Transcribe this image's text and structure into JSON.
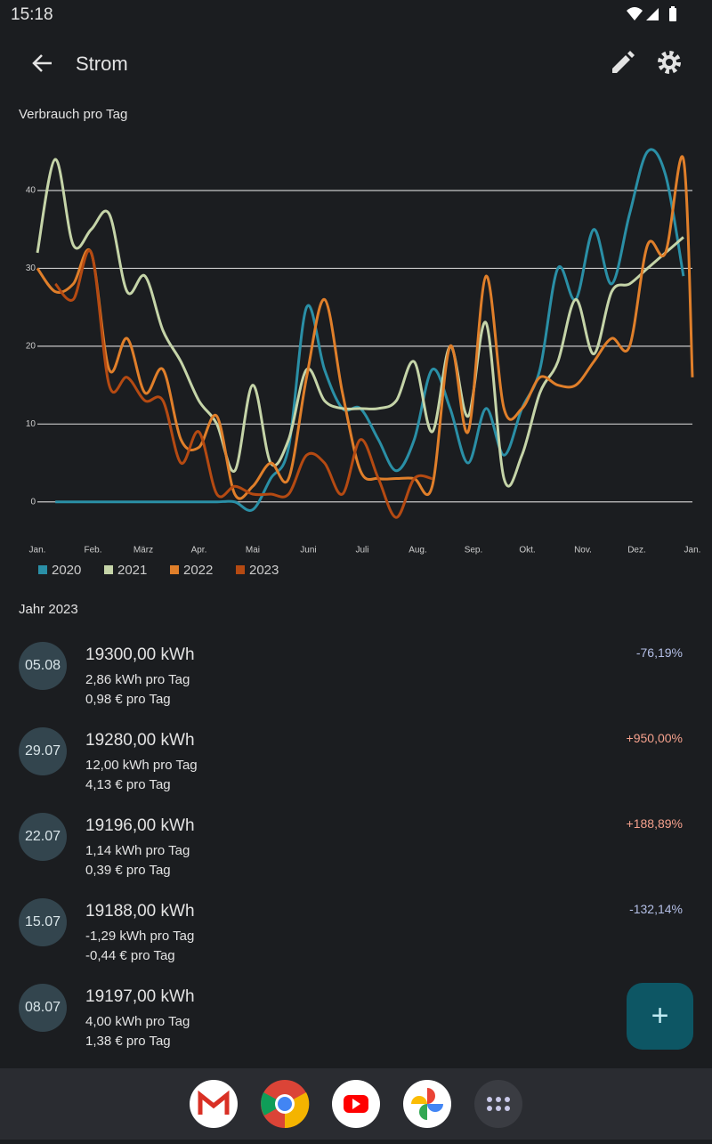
{
  "status_bar": {
    "time": "15:18"
  },
  "app_bar": {
    "title": "Strom"
  },
  "chart_data": {
    "type": "line",
    "title": "Verbrauch pro Tag",
    "x": [
      0,
      10,
      20,
      30,
      40,
      50,
      60,
      70,
      80,
      90,
      100,
      110,
      120,
      130,
      140,
      150,
      160,
      170,
      180,
      190,
      200,
      210,
      220,
      230,
      240,
      250,
      260,
      270,
      280,
      290,
      300,
      310,
      320,
      330,
      340,
      350,
      360,
      365
    ],
    "xlim": [
      0,
      365
    ],
    "xticks": [
      {
        "value": 0,
        "label": "Jan."
      },
      {
        "value": 31,
        "label": "Feb."
      },
      {
        "value": 59,
        "label": "März"
      },
      {
        "value": 90,
        "label": "Apr."
      },
      {
        "value": 120,
        "label": "Mai"
      },
      {
        "value": 151,
        "label": "Juni"
      },
      {
        "value": 181,
        "label": "Juli"
      },
      {
        "value": 212,
        "label": "Aug."
      },
      {
        "value": 243,
        "label": "Sep."
      },
      {
        "value": 273,
        "label": "Okt."
      },
      {
        "value": 304,
        "label": "Nov."
      },
      {
        "value": 334,
        "label": "Dez."
      },
      {
        "value": 365,
        "label": "Jan."
      }
    ],
    "ylim": [
      -3,
      47
    ],
    "yticks": [
      0,
      10,
      20,
      30,
      40
    ],
    "grid": true,
    "series": [
      {
        "name": "2020",
        "color": "#2a8fa6",
        "values": [
          null,
          0,
          0,
          0,
          0,
          0,
          0,
          0,
          0,
          0,
          0,
          0,
          -1,
          3,
          7,
          25,
          17,
          12,
          12,
          8,
          4,
          8,
          17,
          12,
          5,
          12,
          6,
          12,
          17,
          30,
          26,
          35,
          28,
          37,
          45,
          42,
          29,
          null
        ]
      },
      {
        "name": "2021",
        "color": "#c5d4a8",
        "values": [
          32,
          44,
          33,
          35,
          37,
          27,
          29,
          22,
          18,
          13,
          10,
          4,
          15,
          5,
          8,
          17,
          13,
          12,
          12,
          12,
          13,
          18,
          9,
          20,
          11,
          23,
          3,
          6,
          14,
          18,
          26,
          19,
          27,
          28,
          30,
          32,
          34,
          null
        ]
      },
      {
        "name": "2022",
        "color": "#e07f2a",
        "values": [
          30,
          27,
          28,
          32,
          17,
          21,
          14,
          17,
          8,
          7,
          11,
          1,
          2,
          5,
          3,
          16,
          26,
          14,
          4,
          3,
          3,
          3,
          2,
          20,
          9,
          29,
          12,
          12,
          16,
          15,
          15,
          18,
          21,
          20,
          33,
          32,
          44,
          16
        ]
      },
      {
        "name": "2023",
        "color": "#b54a12",
        "values": [
          null,
          28,
          26,
          32,
          15,
          16,
          13,
          13,
          5,
          9,
          1,
          2,
          1,
          1,
          1,
          6,
          5,
          1,
          8,
          3,
          -2,
          3,
          3,
          null,
          null,
          null,
          null,
          null,
          null,
          null,
          null,
          null,
          null,
          null,
          null,
          null,
          null,
          null
        ]
      }
    ]
  },
  "section": "Jahr 2023",
  "entries": [
    {
      "date": "05.08",
      "total": "19300,00 kWh",
      "per_day": "2,86 kWh pro Tag",
      "cost": "0,98 € pro Tag",
      "change": "-76,19%"
    },
    {
      "date": "29.07",
      "total": "19280,00 kWh",
      "per_day": "12,00 kWh pro Tag",
      "cost": "4,13 € pro Tag",
      "change": "+950,00%"
    },
    {
      "date": "22.07",
      "total": "19196,00 kWh",
      "per_day": "1,14 kWh pro Tag",
      "cost": "0,39 € pro Tag",
      "change": "+188,89%"
    },
    {
      "date": "15.07",
      "total": "19188,00 kWh",
      "per_day": "-1,29 kWh pro Tag",
      "cost": "-0,44 € pro Tag",
      "change": "-132,14%"
    },
    {
      "date": "08.07",
      "total": "19197,00 kWh",
      "per_day": "4,00 kWh pro Tag",
      "cost": "1,38 € pro Tag"
    }
  ],
  "fab": "+"
}
